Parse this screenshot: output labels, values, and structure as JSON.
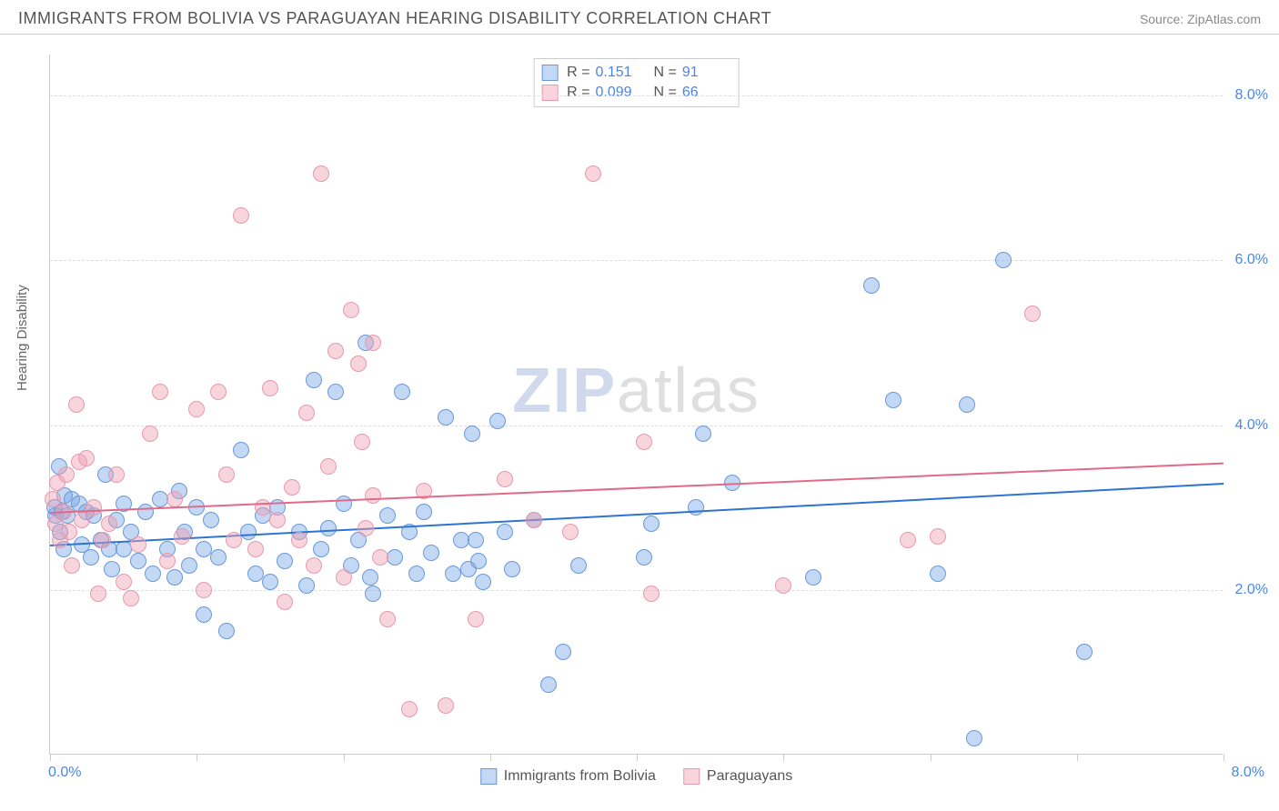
{
  "header": {
    "title": "IMMIGRANTS FROM BOLIVIA VS PARAGUAYAN HEARING DISABILITY CORRELATION CHART",
    "source": "Source: ZipAtlas.com"
  },
  "axes": {
    "y_title": "Hearing Disability",
    "x_min": 0.0,
    "x_max": 8.0,
    "y_min": 0.0,
    "y_max": 8.5,
    "y_ticks": [
      2.0,
      4.0,
      6.0,
      8.0
    ],
    "y_tick_labels": [
      "2.0%",
      "4.0%",
      "6.0%",
      "8.0%"
    ],
    "x_ticks": [
      0,
      1,
      2,
      3,
      4,
      5,
      6,
      7,
      8
    ],
    "x_min_label": "0.0%",
    "x_max_label": "8.0%"
  },
  "style": {
    "bg": "#ffffff",
    "grid": "#dddddd",
    "axis": "#cccccc",
    "tick_label_color": "#4a86e8",
    "text_color": "#666666",
    "point_radius": 9,
    "point_stroke_width": 1.5,
    "trend_width": 2
  },
  "series": [
    {
      "id": "bolivia",
      "label": "Immigrants from Bolivia",
      "fill": "rgba(122,168,230,0.45)",
      "stroke": "#6a98d8",
      "trend_color": "#2e74d0",
      "R": "0.151",
      "N": "91",
      "trend": {
        "x1": 0.0,
        "y1": 2.55,
        "x2": 8.0,
        "y2": 3.3
      },
      "points": [
        [
          0.03,
          3.0
        ],
        [
          0.04,
          2.9
        ],
        [
          0.06,
          3.5
        ],
        [
          0.07,
          2.7
        ],
        [
          0.08,
          2.95
        ],
        [
          0.09,
          2.5
        ],
        [
          0.1,
          3.15
        ],
        [
          0.12,
          2.9
        ],
        [
          0.15,
          3.1
        ],
        [
          0.2,
          3.05
        ],
        [
          0.22,
          2.55
        ],
        [
          0.25,
          2.95
        ],
        [
          0.28,
          2.4
        ],
        [
          0.3,
          2.9
        ],
        [
          0.35,
          2.6
        ],
        [
          0.38,
          3.4
        ],
        [
          0.4,
          2.5
        ],
        [
          0.42,
          2.25
        ],
        [
          0.45,
          2.85
        ],
        [
          0.5,
          2.5
        ],
        [
          0.5,
          3.05
        ],
        [
          0.55,
          2.7
        ],
        [
          0.6,
          2.35
        ],
        [
          0.65,
          2.95
        ],
        [
          0.7,
          2.2
        ],
        [
          0.75,
          3.1
        ],
        [
          0.8,
          2.5
        ],
        [
          0.85,
          2.15
        ],
        [
          0.88,
          3.2
        ],
        [
          0.92,
          2.7
        ],
        [
          0.95,
          2.3
        ],
        [
          1.0,
          3.0
        ],
        [
          1.05,
          2.5
        ],
        [
          1.05,
          1.7
        ],
        [
          1.1,
          2.85
        ],
        [
          1.15,
          2.4
        ],
        [
          1.2,
          1.5
        ],
        [
          1.3,
          3.7
        ],
        [
          1.35,
          2.7
        ],
        [
          1.4,
          2.2
        ],
        [
          1.45,
          2.9
        ],
        [
          1.5,
          2.1
        ],
        [
          1.55,
          3.0
        ],
        [
          1.6,
          2.35
        ],
        [
          1.7,
          2.7
        ],
        [
          1.75,
          2.05
        ],
        [
          1.8,
          4.55
        ],
        [
          1.85,
          2.5
        ],
        [
          1.9,
          2.75
        ],
        [
          1.95,
          4.4
        ],
        [
          2.0,
          3.05
        ],
        [
          2.05,
          2.3
        ],
        [
          2.1,
          2.6
        ],
        [
          2.15,
          5.0
        ],
        [
          2.18,
          2.15
        ],
        [
          2.2,
          1.95
        ],
        [
          2.3,
          2.9
        ],
        [
          2.35,
          2.4
        ],
        [
          2.4,
          4.4
        ],
        [
          2.45,
          2.7
        ],
        [
          2.5,
          2.2
        ],
        [
          2.55,
          2.95
        ],
        [
          2.6,
          2.45
        ],
        [
          2.7,
          4.1
        ],
        [
          2.75,
          2.2
        ],
        [
          2.8,
          2.6
        ],
        [
          2.85,
          2.25
        ],
        [
          2.88,
          3.9
        ],
        [
          2.9,
          2.6
        ],
        [
          2.92,
          2.35
        ],
        [
          2.95,
          2.1
        ],
        [
          3.05,
          4.05
        ],
        [
          3.1,
          2.7
        ],
        [
          3.15,
          2.25
        ],
        [
          3.3,
          2.85
        ],
        [
          3.4,
          0.85
        ],
        [
          3.5,
          1.25
        ],
        [
          3.6,
          2.3
        ],
        [
          4.05,
          2.4
        ],
        [
          4.1,
          2.8
        ],
        [
          4.4,
          3.0
        ],
        [
          4.45,
          3.9
        ],
        [
          4.65,
          3.3
        ],
        [
          5.2,
          2.15
        ],
        [
          5.6,
          5.7
        ],
        [
          5.75,
          4.3
        ],
        [
          6.05,
          2.2
        ],
        [
          6.25,
          4.25
        ],
        [
          6.3,
          0.2
        ],
        [
          6.5,
          6.0
        ],
        [
          7.05,
          1.25
        ]
      ]
    },
    {
      "id": "paraguay",
      "label": "Paraguayans",
      "fill": "rgba(240,160,180,0.45)",
      "stroke": "#e59ab0",
      "trend_color": "#e06a8a",
      "R": "0.099",
      "N": "66",
      "trend": {
        "x1": 0.0,
        "y1": 2.95,
        "x2": 8.0,
        "y2": 3.55
      },
      "points": [
        [
          0.02,
          3.1
        ],
        [
          0.04,
          2.8
        ],
        [
          0.05,
          3.3
        ],
        [
          0.07,
          2.6
        ],
        [
          0.09,
          2.95
        ],
        [
          0.11,
          3.4
        ],
        [
          0.13,
          2.7
        ],
        [
          0.15,
          2.3
        ],
        [
          0.18,
          4.25
        ],
        [
          0.2,
          3.55
        ],
        [
          0.22,
          2.85
        ],
        [
          0.25,
          3.6
        ],
        [
          0.3,
          3.0
        ],
        [
          0.33,
          1.95
        ],
        [
          0.36,
          2.6
        ],
        [
          0.4,
          2.8
        ],
        [
          0.45,
          3.4
        ],
        [
          0.5,
          2.1
        ],
        [
          0.55,
          1.9
        ],
        [
          0.6,
          2.55
        ],
        [
          0.68,
          3.9
        ],
        [
          0.75,
          4.4
        ],
        [
          0.8,
          2.35
        ],
        [
          0.85,
          3.1
        ],
        [
          0.9,
          2.65
        ],
        [
          1.0,
          4.2
        ],
        [
          1.05,
          2.0
        ],
        [
          1.15,
          4.4
        ],
        [
          1.2,
          3.4
        ],
        [
          1.25,
          2.6
        ],
        [
          1.3,
          6.55
        ],
        [
          1.4,
          2.5
        ],
        [
          1.45,
          3.0
        ],
        [
          1.5,
          4.45
        ],
        [
          1.55,
          2.85
        ],
        [
          1.6,
          1.85
        ],
        [
          1.65,
          3.25
        ],
        [
          1.7,
          2.6
        ],
        [
          1.75,
          4.15
        ],
        [
          1.8,
          2.3
        ],
        [
          1.85,
          7.05
        ],
        [
          1.9,
          3.5
        ],
        [
          1.95,
          4.9
        ],
        [
          2.0,
          2.15
        ],
        [
          2.05,
          5.4
        ],
        [
          2.1,
          4.75
        ],
        [
          2.13,
          3.8
        ],
        [
          2.15,
          2.75
        ],
        [
          2.2,
          3.15
        ],
        [
          2.2,
          5.0
        ],
        [
          2.25,
          2.4
        ],
        [
          2.3,
          1.65
        ],
        [
          2.45,
          0.55
        ],
        [
          2.55,
          3.2
        ],
        [
          2.7,
          0.6
        ],
        [
          2.9,
          1.65
        ],
        [
          3.1,
          3.35
        ],
        [
          3.3,
          2.85
        ],
        [
          3.55,
          2.7
        ],
        [
          3.7,
          7.05
        ],
        [
          4.05,
          3.8
        ],
        [
          4.1,
          1.95
        ],
        [
          5.0,
          2.05
        ],
        [
          5.85,
          2.6
        ],
        [
          6.05,
          2.65
        ],
        [
          6.7,
          5.35
        ]
      ]
    }
  ],
  "watermark": {
    "part1": "ZIP",
    "part2": "atlas"
  }
}
